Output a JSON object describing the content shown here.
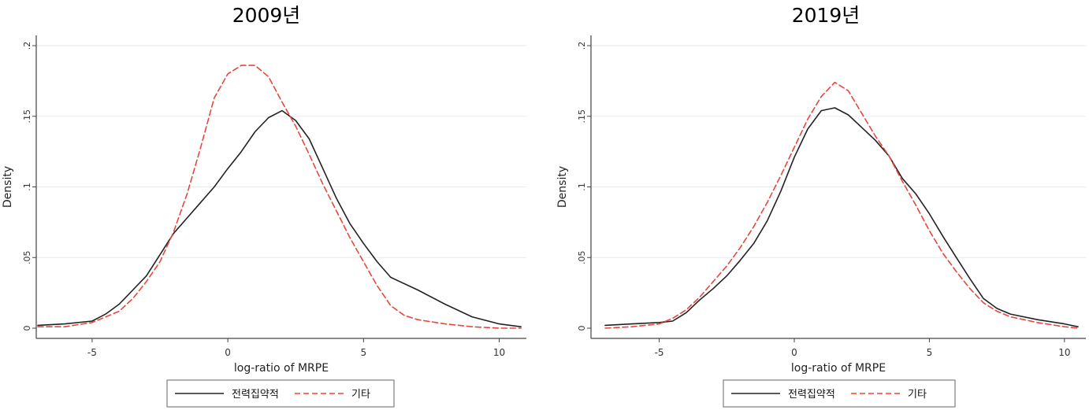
{
  "chart_data": [
    {
      "type": "line",
      "title": "2009년",
      "xlabel": "log-ratio of MRPE",
      "ylabel": "Density",
      "xlim": [
        -7,
        11
      ],
      "ylim": [
        0,
        0.2
      ],
      "xticks": [
        -5,
        0,
        5,
        10
      ],
      "xtick_labels": [
        "-5",
        "0",
        "5",
        "10"
      ],
      "yticks": [
        0,
        0.05,
        0.1,
        0.15,
        0.2
      ],
      "ytick_labels": [
        "0",
        ".05",
        ".1",
        ".15",
        ".2"
      ],
      "grid": true,
      "legend_position": "bottom",
      "series": [
        {
          "name": "전력집약적",
          "color": "#222222",
          "style": "solid",
          "x": [
            -7,
            -6,
            -5,
            -4.5,
            -4,
            -3.5,
            -3,
            -2.5,
            -2,
            -1.5,
            -1,
            -0.5,
            0,
            0.5,
            1,
            1.5,
            2,
            2.5,
            3,
            3.5,
            4,
            4.5,
            5,
            5.5,
            6,
            7,
            8,
            9,
            10,
            10.8
          ],
          "y": [
            0.002,
            0.003,
            0.005,
            0.01,
            0.017,
            0.027,
            0.037,
            0.052,
            0.067,
            0.078,
            0.089,
            0.1,
            0.113,
            0.125,
            0.139,
            0.149,
            0.154,
            0.147,
            0.134,
            0.113,
            0.092,
            0.074,
            0.06,
            0.047,
            0.036,
            0.027,
            0.017,
            0.008,
            0.003,
            0.001
          ]
        },
        {
          "name": "기타",
          "color": "#e8463c",
          "style": "dashed",
          "x": [
            -7,
            -6,
            -5,
            -4,
            -3.5,
            -3,
            -2.5,
            -2,
            -1.5,
            -1,
            -0.5,
            0,
            0.5,
            1,
            1.5,
            2,
            2.5,
            3,
            3.5,
            4,
            4.5,
            5,
            5.5,
            6,
            6.5,
            7,
            8,
            9,
            10,
            10.8
          ],
          "y": [
            0.001,
            0.001,
            0.004,
            0.012,
            0.021,
            0.033,
            0.047,
            0.068,
            0.095,
            0.128,
            0.163,
            0.18,
            0.186,
            0.186,
            0.178,
            0.16,
            0.143,
            0.123,
            0.102,
            0.083,
            0.064,
            0.047,
            0.03,
            0.016,
            0.009,
            0.006,
            0.003,
            0.001,
            0.0,
            0.0
          ]
        }
      ]
    },
    {
      "type": "line",
      "title": "2019년",
      "xlabel": "log-ratio of MRPE",
      "ylabel": "Density",
      "xlim": [
        -7,
        10.5
      ],
      "ylim": [
        0,
        0.2
      ],
      "xticks": [
        -5,
        0,
        5,
        10
      ],
      "xtick_labels": [
        "-5",
        "0",
        "5",
        "10"
      ],
      "yticks": [
        0,
        0.05,
        0.1,
        0.15,
        0.2
      ],
      "ytick_labels": [
        "0",
        ".05",
        ".1",
        ".15",
        ".2"
      ],
      "grid": true,
      "legend_position": "bottom",
      "series": [
        {
          "name": "전력집약적",
          "color": "#222222",
          "style": "solid",
          "x": [
            -7,
            -6,
            -5,
            -4.5,
            -4,
            -3.5,
            -3,
            -2.5,
            -2,
            -1.5,
            -1,
            -0.5,
            0,
            0.5,
            1,
            1.5,
            2,
            2.5,
            3,
            3.5,
            4,
            4.5,
            5,
            5.5,
            6,
            6.5,
            7,
            7.5,
            8,
            9,
            10,
            10.5
          ],
          "y": [
            0.002,
            0.003,
            0.004,
            0.005,
            0.011,
            0.02,
            0.028,
            0.037,
            0.048,
            0.06,
            0.076,
            0.097,
            0.121,
            0.141,
            0.154,
            0.156,
            0.151,
            0.142,
            0.133,
            0.122,
            0.106,
            0.095,
            0.081,
            0.065,
            0.05,
            0.035,
            0.021,
            0.014,
            0.01,
            0.006,
            0.003,
            0.001
          ]
        },
        {
          "name": "기타",
          "color": "#e8463c",
          "style": "dashed",
          "x": [
            -7,
            -6,
            -5,
            -4.5,
            -4,
            -3.5,
            -3,
            -2.5,
            -2,
            -1.5,
            -1,
            -0.5,
            0,
            0.5,
            1,
            1.5,
            2,
            2.5,
            3,
            3.5,
            4,
            4.5,
            5,
            5.5,
            6,
            6.5,
            7,
            7.5,
            8,
            9,
            10,
            10.5
          ],
          "y": [
            0.0,
            0.001,
            0.003,
            0.007,
            0.013,
            0.022,
            0.033,
            0.044,
            0.057,
            0.072,
            0.089,
            0.108,
            0.128,
            0.148,
            0.164,
            0.174,
            0.168,
            0.152,
            0.136,
            0.122,
            0.104,
            0.087,
            0.069,
            0.053,
            0.04,
            0.028,
            0.018,
            0.012,
            0.008,
            0.004,
            0.001,
            0.0
          ]
        }
      ]
    }
  ]
}
